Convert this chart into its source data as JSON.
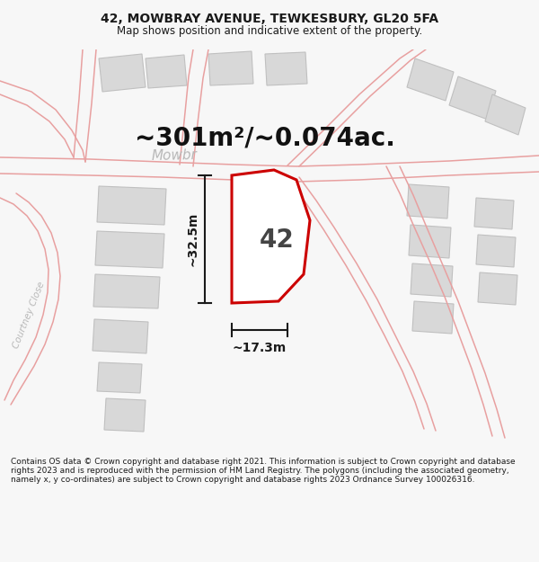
{
  "title": "42, MOWBRAY AVENUE, TEWKESBURY, GL20 5FA",
  "subtitle": "Map shows position and indicative extent of the property.",
  "footer": "Contains OS data © Crown copyright and database right 2021. This information is subject to Crown copyright and database rights 2023 and is reproduced with the permission of HM Land Registry. The polygons (including the associated geometry, namely x, y co-ordinates) are subject to Crown copyright and database rights 2023 Ordnance Survey 100026316.",
  "area_label": "~301m²/~0.074ac.",
  "number_label": "42",
  "dim_h": "~17.3m",
  "dim_v": "~32.5m",
  "bg_color": "#f7f7f7",
  "map_bg": "#ffffff",
  "building_fill": "#d8d8d8",
  "building_edge": "#c0c0c0",
  "road_line_color": "#e8a0a0",
  "highlight_color": "#cc0000",
  "highlight_fill": "#ffffff",
  "dim_color": "#1a1a1a",
  "street_label_color": "#b8b8b8",
  "street_label": "Mowbr",
  "courtney_label": "Courtney Close",
  "title_fontsize": 10,
  "subtitle_fontsize": 8.5,
  "footer_fontsize": 6.5
}
